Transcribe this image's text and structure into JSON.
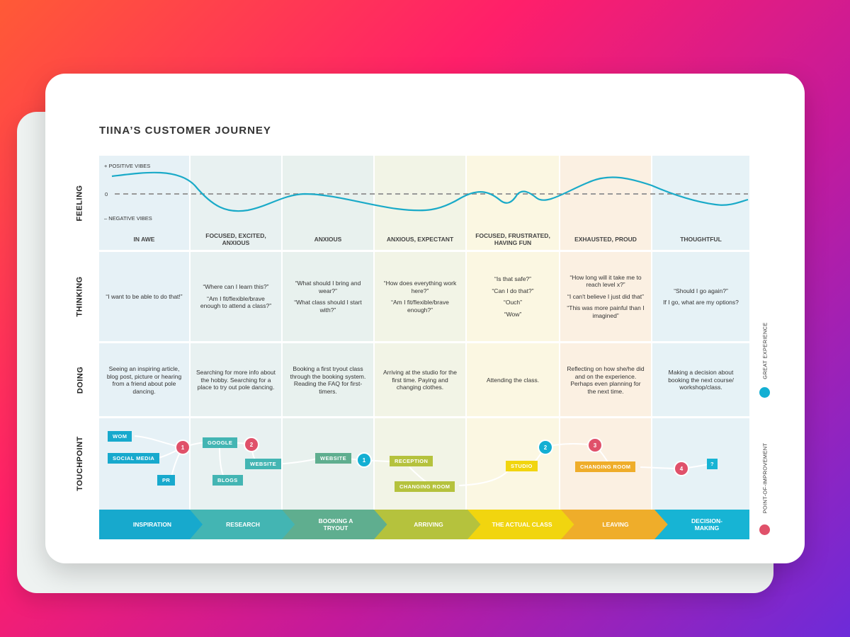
{
  "title": "TIINA’S CUSTOMER JOURNEY",
  "row_labels": {
    "feeling": "FEELING",
    "thinking": "THINKING",
    "doing": "DOING",
    "touchpoint": "TOUCHPOINT"
  },
  "axis": {
    "positive": "+ POSITIVE VIBES",
    "zero": "0",
    "negative": "– NEGATIVE VIBES"
  },
  "colors": {
    "inspiration": "#17a9cd",
    "research": "#43b5b3",
    "booking": "#5fae8f",
    "arriving": "#b5c23d",
    "actual_class": "#f1d50f",
    "leaving": "#efad2a",
    "decision": "#17b4d4",
    "great": "#13afd3",
    "improve": "#e0516a"
  },
  "columns": [
    {
      "emotion": "IN AWE",
      "thinking": [
        "“I want to be able to do that!”"
      ],
      "doing": "Seeing an inspiring article, blog post, picture or hearing from a friend about pole dancing.",
      "stage": "INSPIRATION",
      "bg": "#e6f1f6"
    },
    {
      "emotion": "FOCUSED, EXCITED, ANXIOUS",
      "thinking": [
        "“Where can I learn this?”",
        "“Am I fit/flexible/brave enough to attend a class?”"
      ],
      "doing": "Searching for more info about the hobby. Searching for a place to try out pole dancing.",
      "stage": "RESEARCH",
      "bg": "#e8f1f1"
    },
    {
      "emotion": "ANXIOUS",
      "thinking": [
        "“What should I bring and wear?”",
        "“What class should I start with?”"
      ],
      "doing": "Booking a first tryout class through the booking system. Reading the FAQ for first-timers.",
      "stage": "BOOKING A TRYOUT",
      "bg": "#e8f1ee"
    },
    {
      "emotion": "ANXIOUS, EXPECTANT",
      "thinking": [
        "“How does everything work here?”",
        "“Am I fit/flexible/brave enough?”"
      ],
      "doing": "Arriving at the studio for the first time. Paying and changing clothes.",
      "stage": "ARRIVING",
      "bg": "#f2f4e6"
    },
    {
      "emotion": "FOCUSED, FRUSTRATED, HAVING FUN",
      "thinking": [
        "“Is that safe?”",
        "“Can I do that?”",
        "“Ouch”",
        "“Wow”"
      ],
      "doing": "Attending the class.",
      "stage": "THE ACTUAL CLASS",
      "bg": "#fbf7e2"
    },
    {
      "emotion": "EXHAUSTED, PROUD",
      "thinking": [
        "“How long will it take me to reach level x?”",
        "“I can't believe I just did that”",
        "“This was more painful than I imagined”"
      ],
      "doing": "Reflecting on how she/he did and on the experience. Perhaps even planning for the next time.",
      "stage": "LEAVING",
      "bg": "#fbf0e2"
    },
    {
      "emotion": "THOUGHTFUL",
      "thinking": [
        "“Should I go again?”",
        "If I go, what are my options?"
      ],
      "doing": "Making a decision about booking the next course/ workshop/class.",
      "stage": "DECISION-MAKING",
      "bg": "#e6f2f6"
    }
  ],
  "touchpoints": [
    "WOM",
    "SOCIAL MEDIA",
    "PR",
    "GOOGLE",
    "WEBSITE",
    "BLOGS",
    "WEBSITE",
    "RECEPTION",
    "CHANGING ROOM",
    "STUDIO",
    "CHANGING ROOM",
    "?"
  ],
  "markers": {
    "great": [
      "1",
      "2"
    ],
    "improve": [
      "1",
      "2",
      "3",
      "4"
    ]
  },
  "legend": {
    "great": "GREAT EXPERIENCE",
    "improve": "POINT-OF-IMPROVEMENT"
  }
}
